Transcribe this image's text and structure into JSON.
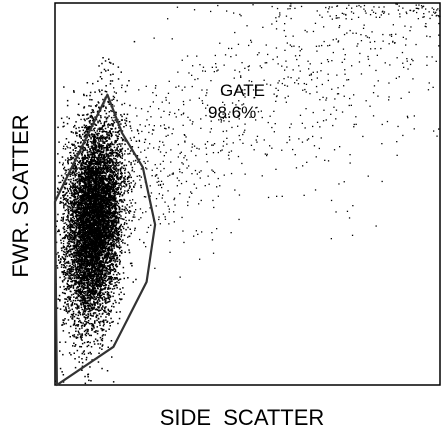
{
  "chart_data": {
    "type": "scatter",
    "title": "",
    "xlabel": "SIDE  SCATTER",
    "ylabel": "FWR. SCATTER",
    "xlim": [
      0,
      100
    ],
    "ylim": [
      0,
      100
    ],
    "grid": false,
    "annotations": [
      {
        "text": "GATE"
      },
      {
        "text": "98.6%"
      }
    ],
    "gate": {
      "label": "GATE",
      "percent": "98.6%",
      "vertices": [
        [
          0,
          48
        ],
        [
          13.6,
          76
        ],
        [
          17.4,
          66
        ],
        [
          22.8,
          57
        ],
        [
          26,
          42
        ],
        [
          23.8,
          27
        ],
        [
          15.2,
          10
        ],
        [
          0.5,
          0
        ]
      ]
    },
    "point_count": 9000,
    "series": [
      {
        "name": "",
        "distribution": "dense core cluster",
        "center": [
          10,
          43
        ],
        "spread": [
          3.5,
          13
        ]
      },
      {
        "distribution": "sparse scatter extending to upper right",
        "extent_x": [
          2,
          100
        ],
        "extent_y": [
          25,
          100
        ]
      }
    ],
    "colors": {
      "points": "#000000",
      "gate": "#333333",
      "axes": "#000000"
    }
  }
}
